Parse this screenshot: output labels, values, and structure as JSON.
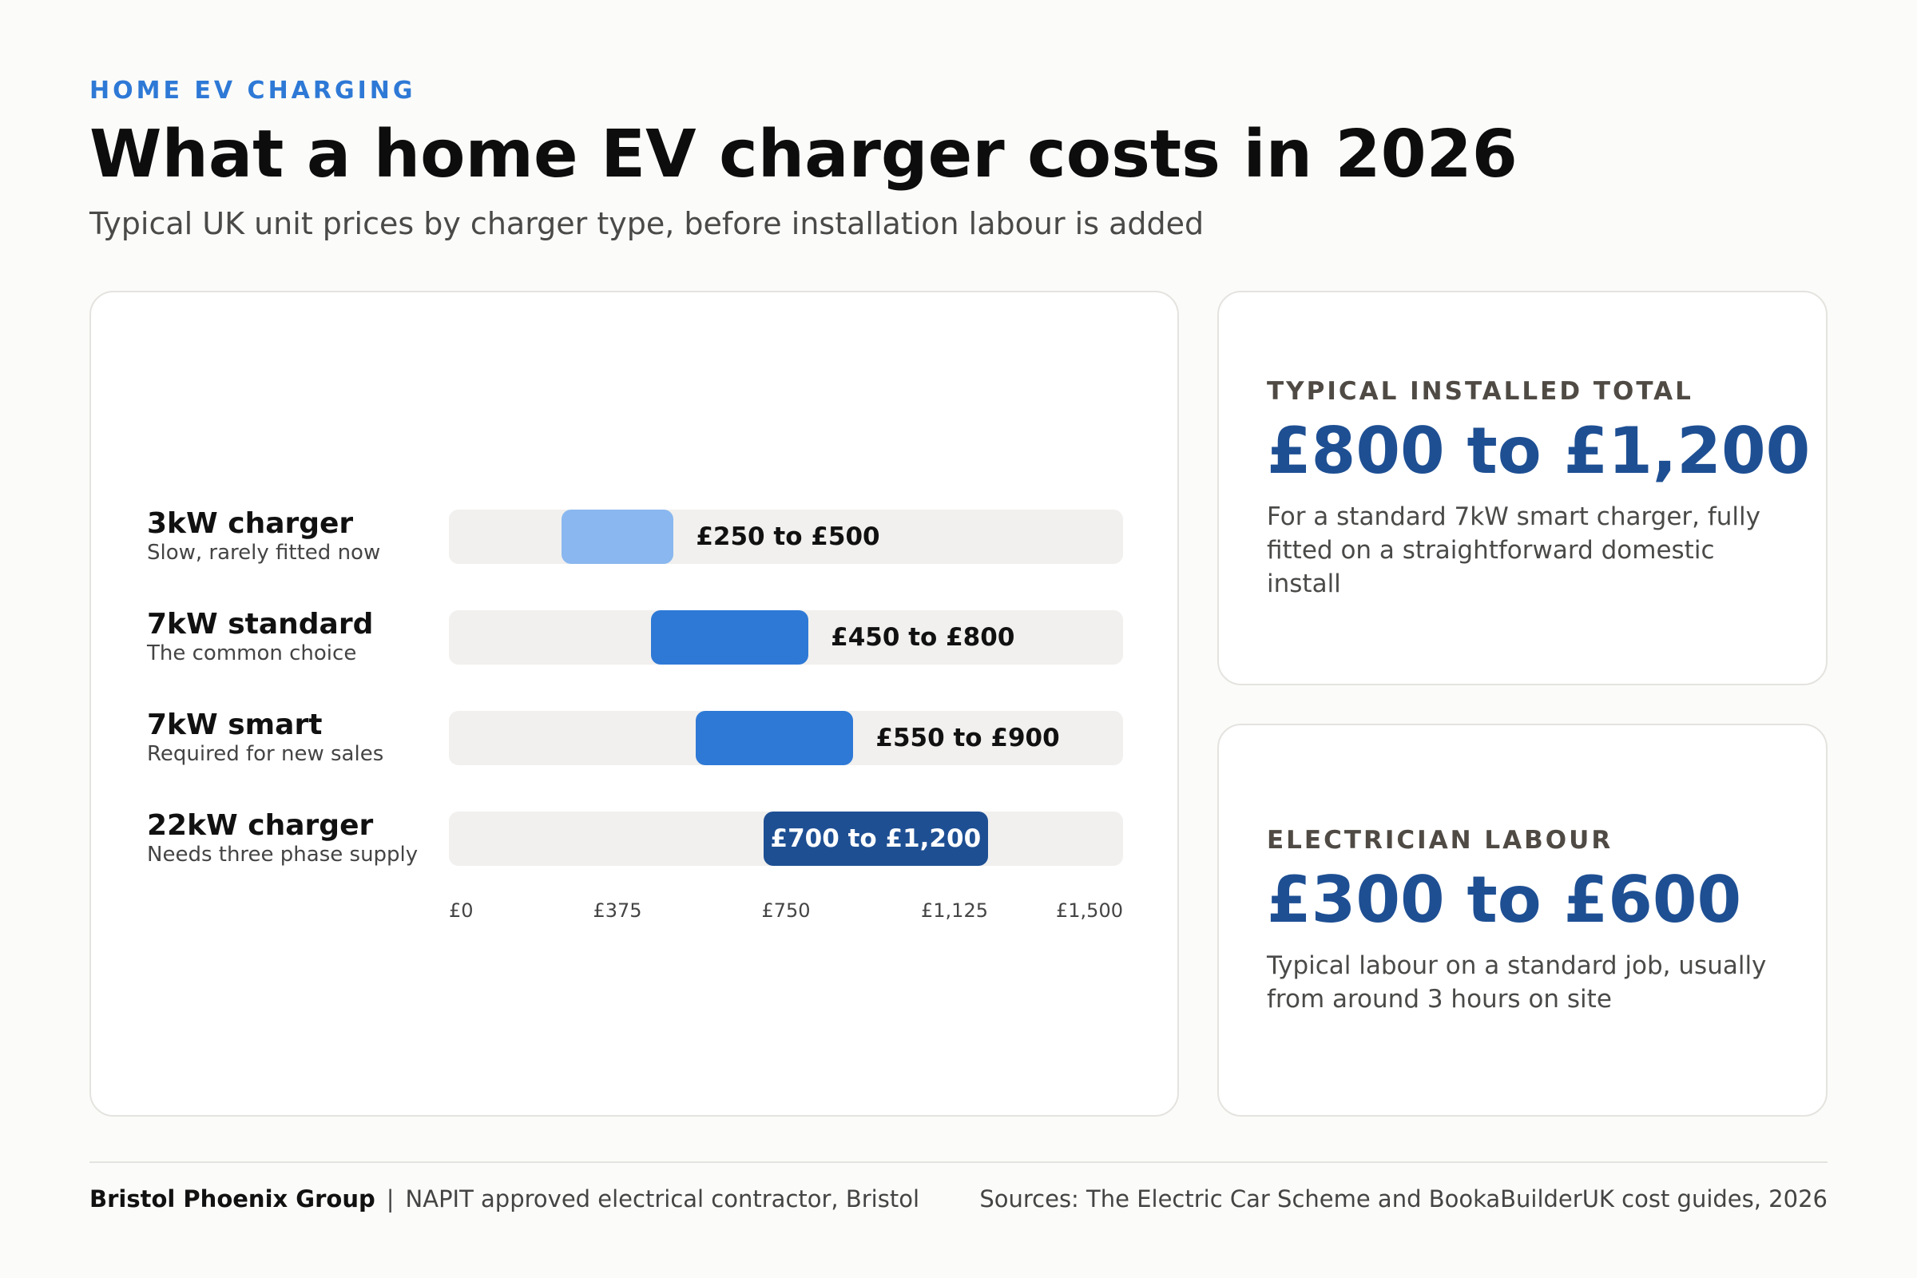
{
  "header": {
    "eyebrow": "HOME EV CHARGING",
    "title": "What a home EV charger costs in 2026",
    "subtitle": "Typical UK unit prices by charger type, before installation labour is added"
  },
  "chart_data": {
    "type": "bar",
    "orientation": "horizontal-range",
    "categories": [
      "3kW charger",
      "7kW standard",
      "7kW smart",
      "22kW charger"
    ],
    "descriptions": [
      "Slow, rarely fitted now",
      "The common choice",
      "Required for new sales",
      "Needs three phase supply"
    ],
    "ranges": [
      [
        250,
        500
      ],
      [
        450,
        800
      ],
      [
        550,
        900
      ],
      [
        700,
        1200
      ]
    ],
    "range_labels": [
      "£250 to £500",
      "£450 to £800",
      "£550 to £900",
      "£700 to £1,200"
    ],
    "colors": [
      "#8ab7ef",
      "#2e79d6",
      "#2e79d6",
      "#1e4f93"
    ],
    "xlim": [
      0,
      1500
    ],
    "x_ticks": [
      0,
      375,
      750,
      1125,
      1500
    ],
    "x_tick_labels": [
      "£0",
      "£375",
      "£750",
      "£1,125",
      "£1,500"
    ],
    "grid": false
  },
  "stats": [
    {
      "eyebrow": "TYPICAL INSTALLED TOTAL",
      "value": "£800 to £1,200",
      "description": "For a standard 7kW smart charger, fully fitted on a straightforward domestic install"
    },
    {
      "eyebrow": "ELECTRICIAN LABOUR",
      "value": "£300 to £600",
      "description": "Typical labour on a standard job, usually from around 3 hours on site"
    }
  ],
  "footer": {
    "brand": "Bristol Phoenix Group",
    "separator": "|",
    "tagline": "NAPIT approved electrical contractor, Bristol",
    "sources": "Sources: The Electric Car Scheme and BookaBuilderUK cost guides, 2026"
  }
}
